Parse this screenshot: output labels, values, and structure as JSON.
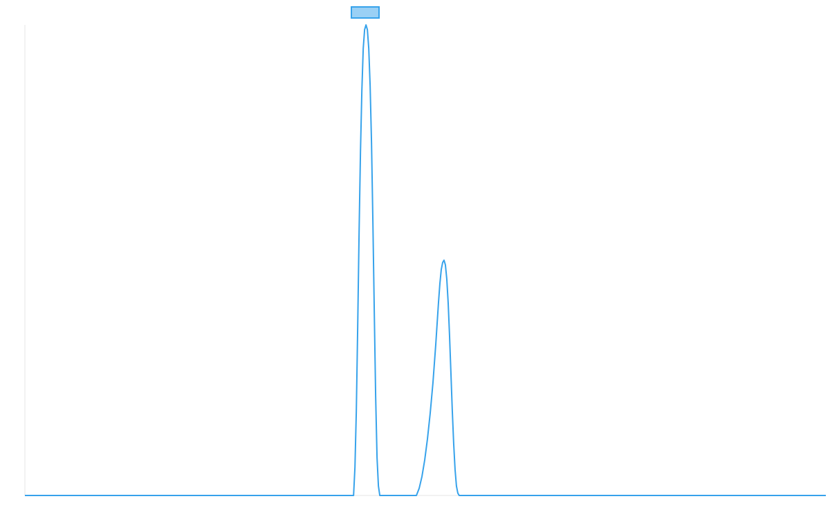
{
  "colors": {
    "line": "#36a2eb",
    "legend_fill": "#9ad0f5",
    "axis": "#e5e5e5",
    "background": "#ffffff"
  },
  "legend": {
    "placement": "top-center",
    "entries": [
      {
        "label": ""
      }
    ]
  },
  "chart_data": {
    "type": "line",
    "title": "",
    "xlabel": "",
    "ylabel": "",
    "grid": false,
    "legend_placement": "top",
    "xlim": [
      0,
      1160
    ],
    "ylim": [
      0,
      100
    ],
    "series": [
      {
        "x": [
          0,
          476,
          478,
          480,
          482,
          484,
          486,
          488,
          490,
          492,
          494,
          496,
          498,
          500,
          502,
          504,
          506,
          508,
          510,
          512,
          514,
          516,
          518,
          520,
          522,
          567,
          571,
          575,
          579,
          583,
          587,
          591,
          595,
          599,
          601,
          603,
          605,
          607,
          609,
          611,
          613,
          615,
          617,
          619,
          621,
          623,
          625,
          627,
          629,
          631,
          633,
          635,
          1160
        ],
        "values": [
          0,
          0,
          6,
          18,
          36,
          56,
          73,
          86,
          95,
          99,
          100,
          99,
          95,
          87,
          75,
          58,
          39,
          21,
          8,
          2,
          0,
          0,
          0,
          0,
          0,
          0,
          1.5,
          4,
          7.5,
          12,
          17.5,
          24,
          32,
          41,
          45,
          48,
          49.5,
          50,
          49,
          46,
          41,
          34,
          26,
          18,
          11,
          5.5,
          2,
          0.5,
          0,
          0,
          0,
          0,
          0
        ]
      }
    ]
  }
}
